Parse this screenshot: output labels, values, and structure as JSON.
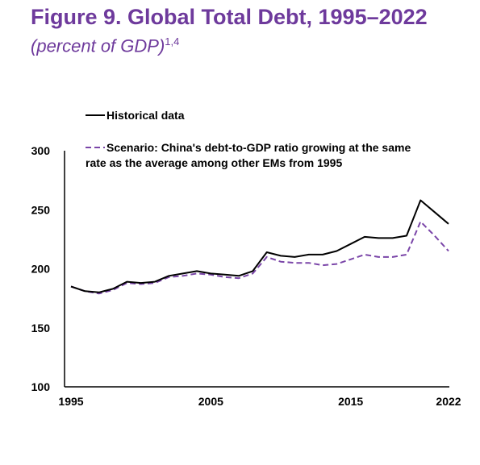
{
  "title": "Figure 9. Global Total Debt, 1995–2022",
  "subtitle": {
    "open_paren": "(",
    "text": "percent of GDP",
    "close_paren": ")",
    "superscript": "1,4"
  },
  "colors": {
    "title": "#6e3a9c",
    "historical": "#000000",
    "scenario": "#7a45a8"
  },
  "chart_data": {
    "type": "line",
    "ylim": [
      100,
      300
    ],
    "xlim": [
      1995,
      2022
    ],
    "yticks": [
      100,
      150,
      200,
      250,
      300
    ],
    "xticks": [
      1995,
      2005,
      2015,
      2022
    ],
    "grid": false,
    "legend_placement": "top-left",
    "x": [
      1995,
      1996,
      1997,
      1998,
      1999,
      2000,
      2001,
      2002,
      2003,
      2004,
      2005,
      2006,
      2007,
      2008,
      2009,
      2010,
      2011,
      2012,
      2013,
      2014,
      2015,
      2016,
      2017,
      2018,
      2019,
      2020,
      2021,
      2022
    ],
    "series": [
      {
        "name": "Historical data",
        "style": "solid",
        "values": [
          185,
          181,
          180,
          183,
          189,
          188,
          189,
          194,
          196,
          198,
          196,
          195,
          194,
          198,
          214,
          211,
          210,
          212,
          212,
          215,
          221,
          227,
          226,
          226,
          228,
          258,
          248,
          238
        ]
      },
      {
        "name": "Scenario: China's debt-to-GDP ratio growing at the same rate as the average among other EMs from 1995",
        "name_lines": [
          "Scenario: China's debt-to-GDP ratio growing at the same",
          "rate as the average among other EMs from 1995"
        ],
        "style": "dashed",
        "values": [
          185,
          181,
          179,
          182,
          188,
          187,
          188,
          193,
          194,
          196,
          195,
          193,
          192,
          196,
          210,
          206,
          205,
          205,
          203,
          204,
          208,
          212,
          210,
          210,
          212,
          240,
          228,
          215
        ]
      }
    ]
  }
}
